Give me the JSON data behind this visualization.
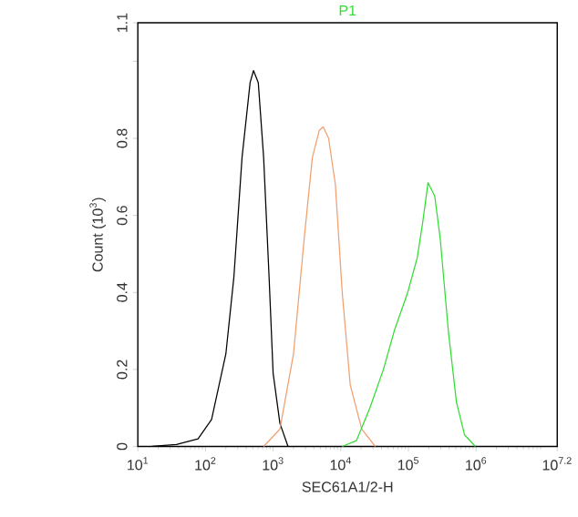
{
  "chart_data": {
    "type": "line",
    "xlabel": "SEC61A1/2-H",
    "ylabel": "Count (10$^{3}$)",
    "log": "x",
    "grid": false,
    "marker": "none",
    "line_style": "solid",
    "xlim": [
      10,
      15848932
    ],
    "ylim": [
      0,
      1.1
    ],
    "xticks": [
      {
        "value": 10,
        "label": "10$^{1}$"
      },
      {
        "value": 100,
        "label": "10$^{2}$"
      },
      {
        "value": 1000,
        "label": "10$^{3}$"
      },
      {
        "value": 10000,
        "label": "10$^{4}$"
      },
      {
        "value": 100000,
        "label": "10$^{5}$"
      },
      {
        "value": 1000000,
        "label": "10$^{6}$"
      },
      {
        "value": 15848932,
        "label": "10$^{7.2}$"
      }
    ],
    "yticks": [
      0,
      0.2,
      0.4,
      0.6,
      0.8,
      {
        "value": 1.0,
        "label": null
      },
      1.1
    ],
    "series": [
      {
        "color": "#000000",
        "x": [
          16.2,
          37.2,
          77.6,
          123,
          200,
          263,
          347,
          457,
          513,
          603,
          724,
          871,
          1000,
          1260,
          1660
        ],
        "values": [
          0,
          0.005,
          0.02,
          0.07,
          0.24,
          0.44,
          0.75,
          0.945,
          0.976,
          0.945,
          0.75,
          0.44,
          0.19,
          0.06,
          0
        ]
      },
      {
        "color": "#f0a070",
        "x": [
          724,
          1260,
          2000,
          2880,
          3800,
          4790,
          5500,
          6610,
          8320,
          10500,
          13800,
          20400,
          32400
        ],
        "values": [
          0,
          0.045,
          0.24,
          0.54,
          0.75,
          0.82,
          0.83,
          0.8,
          0.68,
          0.4,
          0.16,
          0.045,
          0
        ]
      },
      {
        "name": "P1",
        "color": "#33dd33",
        "x": [
          10500,
          17000,
          26900,
          42700,
          61700,
          97700,
          135000,
          162000,
          195000,
          245000,
          295000,
          389000,
          513000,
          676000,
          977000
        ],
        "values": [
          0,
          0.015,
          0.1,
          0.2,
          0.3,
          0.4,
          0.49,
          0.58,
          0.685,
          0.65,
          0.54,
          0.3,
          0.115,
          0.03,
          0
        ]
      }
    ]
  }
}
